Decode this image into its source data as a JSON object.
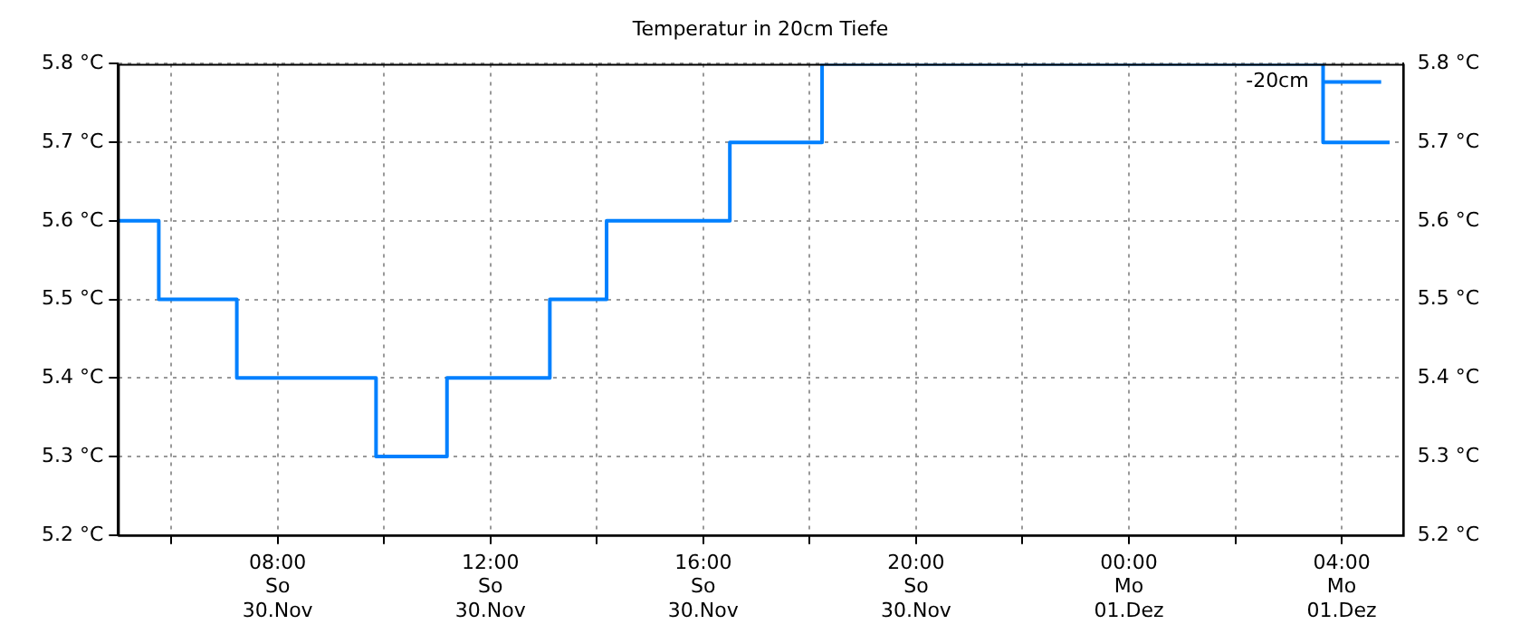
{
  "chart_data": {
    "type": "step",
    "title": "Temperatur in 20cm Tiefe",
    "x": [
      "--11-30T05:00",
      "--11-30T05:46",
      "--11-30T07:14",
      "--11-30T09:51",
      "--11-30T11:11",
      "--11-30T13:07",
      "--11-30T14:11",
      "--11-30T16:30",
      "--11-30T18:14",
      "--12-01T03:39",
      "--12-01T04:54"
    ],
    "series": [
      {
        "name": "-20cm",
        "color": "#0080ff",
        "values": [
          5.6,
          5.5,
          5.4,
          5.3,
          5.4,
          5.5,
          5.6,
          5.7,
          5.8,
          5.7,
          5.7
        ]
      }
    ],
    "xlim": [
      "--11-30T05:00",
      "--12-01T05:09"
    ],
    "xticks": [
      {
        "value": "--11-30T06:00",
        "label": null
      },
      {
        "value": "--11-30T08:00",
        "label": "08:00\nSo\n30.Nov"
      },
      {
        "value": "--11-30T10:00",
        "label": null
      },
      {
        "value": "--11-30T12:00",
        "label": "12:00\nSo\n30.Nov"
      },
      {
        "value": "--11-30T14:00",
        "label": null
      },
      {
        "value": "--11-30T16:00",
        "label": "16:00\nSo\n30.Nov"
      },
      {
        "value": "--11-30T18:00",
        "label": null
      },
      {
        "value": "--11-30T20:00",
        "label": "20:00\nSo\n30.Nov"
      },
      {
        "value": "--11-30T22:00",
        "label": null
      },
      {
        "value": "--12-01T00:00",
        "label": "00:00\nMo\n01.Dez"
      },
      {
        "value": "--12-01T02:00",
        "label": null
      },
      {
        "value": "--12-01T04:00",
        "label": "04:00\nMo\n01.Dez"
      }
    ],
    "ylim": [
      5.2,
      5.8
    ],
    "yticks": [
      {
        "value": 5.2,
        "label": "5.2 °C"
      },
      {
        "value": 5.3,
        "label": "5.3 °C"
      },
      {
        "value": 5.4,
        "label": "5.4 °C"
      },
      {
        "value": 5.5,
        "label": "5.5 °C"
      },
      {
        "value": 5.6,
        "label": "5.6 °C"
      },
      {
        "value": 5.7,
        "label": "5.7 °C"
      },
      {
        "value": 5.8,
        "label": "5.8 °C"
      }
    ],
    "y2lim": [
      5.2,
      5.8
    ],
    "y2ticks": [
      {
        "value": 5.2,
        "label": "5.2 °C"
      },
      {
        "value": 5.3,
        "label": "5.3 °C"
      },
      {
        "value": 5.4,
        "label": "5.4 °C"
      },
      {
        "value": 5.5,
        "label": "5.5 °C"
      },
      {
        "value": 5.6,
        "label": "5.6 °C"
      },
      {
        "value": 5.7,
        "label": "5.7 °C"
      },
      {
        "value": 5.8,
        "label": "5.8 °C"
      }
    ],
    "grid": true,
    "legend": "top right"
  }
}
